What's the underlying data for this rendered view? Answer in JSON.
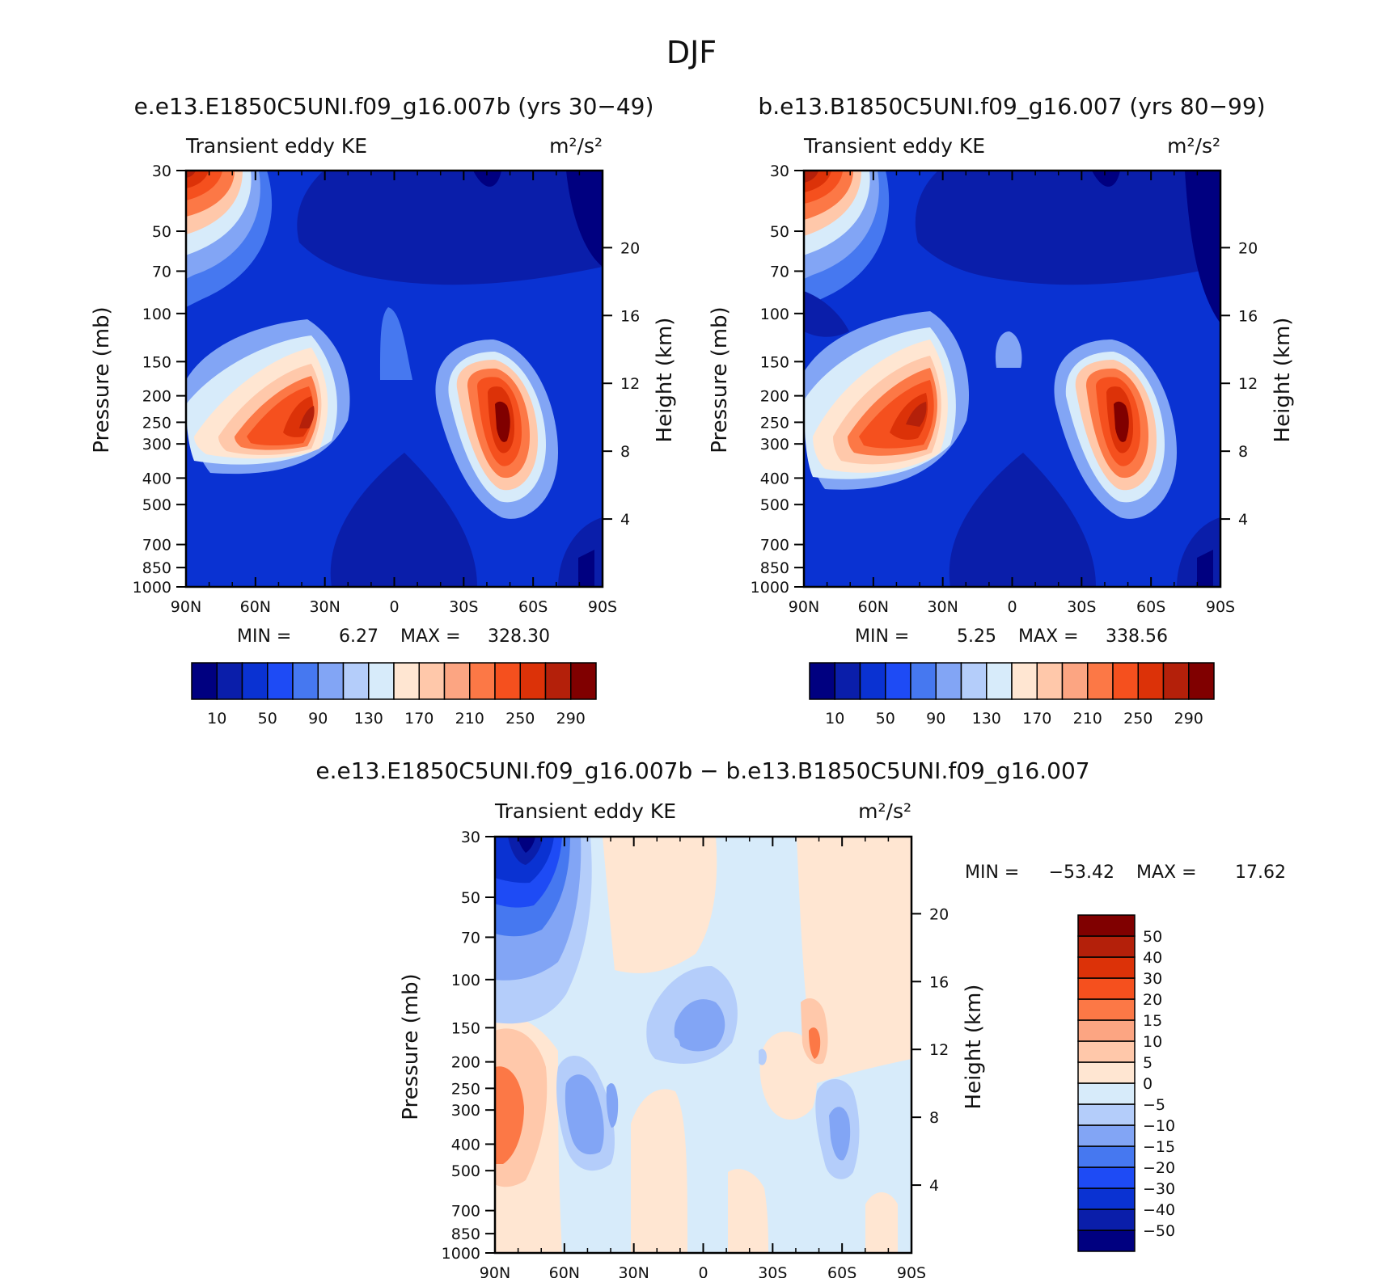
{
  "figure": {
    "title": "DJF",
    "panel1_title": "e.e13.E1850C5UNI.f09_g16.007b (yrs 30−49)",
    "panel2_title": "b.e13.B1850C5UNI.f09_g16.007 (yrs 80−99)",
    "panel3_title": "e.e13.E1850C5UNI.f09_g16.007b − b.e13.B1850C5UNI.f09_g16.007"
  },
  "chart_data": [
    {
      "type": "heatmap",
      "name": "Transient eddy KE",
      "units": "m²/s²",
      "ylabel": "Pressure (mb)",
      "y2label": "Height (km)",
      "x_ticks": [
        "90N",
        "60N",
        "30N",
        "0",
        "30S",
        "60S",
        "90S"
      ],
      "y_ticks": [
        30,
        50,
        70,
        100,
        150,
        200,
        250,
        300,
        400,
        500,
        700,
        850,
        1000
      ],
      "y2_ticks": [
        4,
        8,
        12,
        16,
        20
      ],
      "min_label": "MIN =",
      "min_value": "6.27",
      "max_label": "MAX =",
      "max_value": "328.30",
      "colorbar": {
        "labels": [
          "10",
          "50",
          "90",
          "130",
          "170",
          "210",
          "250",
          "290"
        ],
        "colors": [
          "#000080",
          "#0a1eaa",
          "#0a32d2",
          "#1e4bf5",
          "#4678f0",
          "#82a5f5",
          "#b4cdfa",
          "#d7ebfa",
          "#ffe6d2",
          "#ffc8aa",
          "#fca582",
          "#fc7846",
          "#f5501e",
          "#dc3208",
          "#b4200a",
          "#800000"
        ]
      }
    },
    {
      "type": "heatmap",
      "name": "Transient eddy KE",
      "units": "m²/s²",
      "ylabel": "Pressure (mb)",
      "y2label": "Height (km)",
      "x_ticks": [
        "90N",
        "60N",
        "30N",
        "0",
        "30S",
        "60S",
        "90S"
      ],
      "y_ticks": [
        30,
        50,
        70,
        100,
        150,
        200,
        250,
        300,
        400,
        500,
        700,
        850,
        1000
      ],
      "y2_ticks": [
        4,
        8,
        12,
        16,
        20
      ],
      "min_label": "MIN =",
      "min_value": "5.25",
      "max_label": "MAX =",
      "max_value": "338.56",
      "colorbar": {
        "labels": [
          "10",
          "50",
          "90",
          "130",
          "170",
          "210",
          "250",
          "290"
        ],
        "colors": [
          "#000080",
          "#0a1eaa",
          "#0a32d2",
          "#1e4bf5",
          "#4678f0",
          "#82a5f5",
          "#b4cdfa",
          "#d7ebfa",
          "#ffe6d2",
          "#ffc8aa",
          "#fca582",
          "#fc7846",
          "#f5501e",
          "#dc3208",
          "#b4200a",
          "#800000"
        ]
      }
    },
    {
      "type": "heatmap",
      "name": "Transient eddy KE",
      "units": "m²/s²",
      "ylabel": "Pressure (mb)",
      "y2label": "Height (km)",
      "x_ticks": [
        "90N",
        "60N",
        "30N",
        "0",
        "30S",
        "60S",
        "90S"
      ],
      "y_ticks": [
        30,
        50,
        70,
        100,
        150,
        200,
        250,
        300,
        400,
        500,
        700,
        850,
        1000
      ],
      "y2_ticks": [
        4,
        8,
        12,
        16,
        20
      ],
      "min_label": "MIN =",
      "min_value": "−53.42",
      "max_label": "MAX =",
      "max_value": "17.62",
      "colorbar": {
        "labels": [
          "−50",
          "−40",
          "−30",
          "−20",
          "−15",
          "−10",
          "−5",
          "0",
          "5",
          "10",
          "15",
          "20",
          "30",
          "40",
          "50"
        ],
        "colors": [
          "#000080",
          "#0a1eaa",
          "#0a32d2",
          "#1e4bf5",
          "#4678f0",
          "#82a5f5",
          "#b4cdfa",
          "#d7ebfa",
          "#ffe6d2",
          "#ffc8aa",
          "#fca582",
          "#fc7846",
          "#f5501e",
          "#dc3208",
          "#b4200a",
          "#800000"
        ]
      }
    }
  ]
}
